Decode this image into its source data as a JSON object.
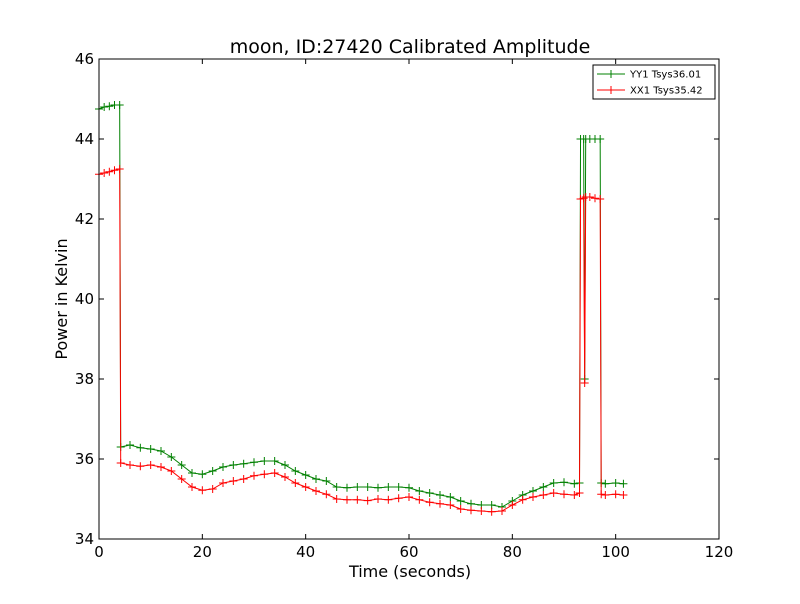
{
  "chart_data": {
    "type": "line",
    "title": "moon, ID:27420 Calibrated Amplitude",
    "xlabel": "Time (seconds)",
    "ylabel": "Power in Kelvin",
    "xlim": [
      0,
      120
    ],
    "ylim": [
      34,
      46
    ],
    "xticks": [
      "0",
      "20",
      "40",
      "60",
      "80",
      "100",
      "120"
    ],
    "yticks": [
      "34",
      "36",
      "38",
      "40",
      "42",
      "44",
      "46"
    ],
    "grid": false,
    "legend_position": "top-right",
    "marker": "plus",
    "series": [
      {
        "name": "YY1 Tsys36.01",
        "color": "#008000",
        "points": [
          [
            0,
            44.75
          ],
          [
            1,
            44.8
          ],
          [
            2,
            44.82
          ],
          [
            3,
            44.85
          ],
          [
            4,
            44.85
          ],
          [
            4.2,
            36.3
          ],
          [
            6,
            36.35
          ],
          [
            8,
            36.28
          ],
          [
            10,
            36.25
          ],
          [
            12,
            36.2
          ],
          [
            14,
            36.05
          ],
          [
            16,
            35.85
          ],
          [
            18,
            35.65
          ],
          [
            20,
            35.62
          ],
          [
            22,
            35.7
          ],
          [
            24,
            35.8
          ],
          [
            26,
            35.85
          ],
          [
            28,
            35.88
          ],
          [
            30,
            35.92
          ],
          [
            32,
            35.95
          ],
          [
            34,
            35.95
          ],
          [
            36,
            35.85
          ],
          [
            38,
            35.7
          ],
          [
            40,
            35.6
          ],
          [
            42,
            35.5
          ],
          [
            44,
            35.45
          ],
          [
            46,
            35.3
          ],
          [
            48,
            35.28
          ],
          [
            50,
            35.3
          ],
          [
            52,
            35.3
          ],
          [
            54,
            35.28
          ],
          [
            56,
            35.3
          ],
          [
            58,
            35.3
          ],
          [
            60,
            35.28
          ],
          [
            62,
            35.2
          ],
          [
            64,
            35.15
          ],
          [
            66,
            35.1
          ],
          [
            68,
            35.05
          ],
          [
            70,
            34.95
          ],
          [
            72,
            34.88
          ],
          [
            74,
            34.85
          ],
          [
            76,
            34.85
          ],
          [
            78,
            34.8
          ],
          [
            80,
            34.95
          ],
          [
            82,
            35.1
          ],
          [
            84,
            35.2
          ],
          [
            86,
            35.3
          ],
          [
            88,
            35.4
          ],
          [
            90,
            35.42
          ],
          [
            92,
            35.38
          ],
          [
            93,
            35.4
          ],
          [
            93.2,
            44.0
          ],
          [
            93.8,
            44.0
          ],
          [
            94.0,
            38.0
          ],
          [
            94.2,
            44.0
          ],
          [
            95,
            44.0
          ],
          [
            96,
            44.0
          ],
          [
            97,
            44.0
          ],
          [
            97.2,
            35.4
          ],
          [
            98,
            35.38
          ],
          [
            100,
            35.4
          ],
          [
            101.5,
            35.38
          ]
        ]
      },
      {
        "name": "XX1 Tsys35.42",
        "color": "#ff0000",
        "points": [
          [
            0,
            43.12
          ],
          [
            1,
            43.15
          ],
          [
            2,
            43.18
          ],
          [
            3,
            43.22
          ],
          [
            4,
            43.25
          ],
          [
            4.2,
            35.9
          ],
          [
            6,
            35.85
          ],
          [
            8,
            35.82
          ],
          [
            10,
            35.85
          ],
          [
            12,
            35.8
          ],
          [
            14,
            35.7
          ],
          [
            16,
            35.5
          ],
          [
            18,
            35.3
          ],
          [
            20,
            35.22
          ],
          [
            22,
            35.25
          ],
          [
            24,
            35.4
          ],
          [
            26,
            35.45
          ],
          [
            28,
            35.5
          ],
          [
            30,
            35.58
          ],
          [
            32,
            35.62
          ],
          [
            34,
            35.65
          ],
          [
            36,
            35.55
          ],
          [
            38,
            35.4
          ],
          [
            40,
            35.3
          ],
          [
            42,
            35.2
          ],
          [
            44,
            35.12
          ],
          [
            46,
            35.0
          ],
          [
            48,
            34.98
          ],
          [
            50,
            34.98
          ],
          [
            52,
            34.96
          ],
          [
            54,
            35.0
          ],
          [
            56,
            34.98
          ],
          [
            58,
            35.02
          ],
          [
            60,
            35.05
          ],
          [
            62,
            34.98
          ],
          [
            64,
            34.92
          ],
          [
            66,
            34.88
          ],
          [
            68,
            34.85
          ],
          [
            70,
            34.75
          ],
          [
            72,
            34.72
          ],
          [
            74,
            34.7
          ],
          [
            76,
            34.68
          ],
          [
            78,
            34.7
          ],
          [
            80,
            34.85
          ],
          [
            82,
            34.98
          ],
          [
            84,
            35.05
          ],
          [
            86,
            35.1
          ],
          [
            88,
            35.15
          ],
          [
            90,
            35.12
          ],
          [
            92,
            35.1
          ],
          [
            93,
            35.15
          ],
          [
            93.2,
            42.5
          ],
          [
            93.8,
            42.52
          ],
          [
            94.0,
            37.9
          ],
          [
            94.2,
            42.55
          ],
          [
            95,
            42.55
          ],
          [
            96,
            42.52
          ],
          [
            97,
            42.5
          ],
          [
            97.2,
            35.12
          ],
          [
            98,
            35.1
          ],
          [
            100,
            35.12
          ],
          [
            101.5,
            35.1
          ]
        ]
      }
    ]
  }
}
